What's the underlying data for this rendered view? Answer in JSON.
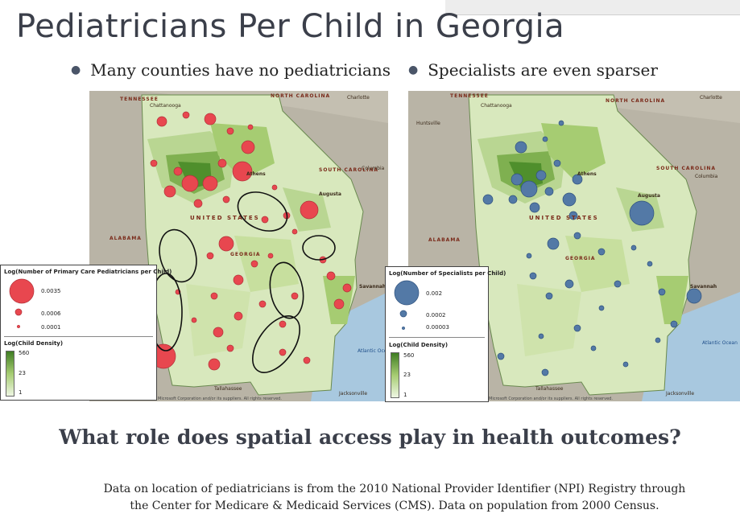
{
  "title": "Pediatricians Per Child in Georgia",
  "bullets": [
    "Many counties have no pediatricians",
    "Specialists are even sparser"
  ],
  "colors": {
    "pediatrician_marker": "#e8474f",
    "specialist_marker": "#5379a6",
    "density_high": "#3f7d23",
    "density_low": "#eef6e2"
  },
  "maps": {
    "labels": {
      "tennessee": "TENNESSEE",
      "north_carolina": "NORTH CAROLINA",
      "south_carolina": "SOUTH CAROLINA",
      "united_states": "UNITED STATES",
      "georgia": "GEORGIA",
      "alabama": "ALABAMA",
      "atlantic_ocean": "Atlantic Ocean",
      "chattanooga": "Chattanooga",
      "charlotte": "Charlotte",
      "columbia": "Columbia",
      "augusta": "Augusta",
      "savannah": "Savannah",
      "tallahassee": "Tallahassee",
      "jacksonville": "Jacksonville",
      "huntsville": "Huntsville",
      "athens": "Athens",
      "copyright": "Microsoft Corporation and/or its suppliers. All rights reserved."
    },
    "left": {
      "legend": {
        "size_title": "Log(Number of Primary Care Pediatricians per Child)",
        "size_values": [
          "0.0035",
          "0.0006",
          "0.0001"
        ],
        "density_title": "Log(Child Density)",
        "density_values": [
          "560",
          "23",
          "1"
        ]
      }
    },
    "right": {
      "legend": {
        "size_title": "Log(Number of Specialists per Child)",
        "size_values": [
          "0.002",
          "0.0002",
          "0.00003"
        ],
        "density_title": "Log(Child Density)",
        "density_values": [
          "560",
          "23",
          "1"
        ]
      }
    }
  },
  "question": "What role does spatial access play in health outcomes?",
  "source_line1": "Data on location of pediatricians is from the 2010 National Provider Identifier (NPI) Registry through",
  "source_line2": "the Center for Medicare & Medicaid Services (CMS).  Data on population from 2000 Census."
}
